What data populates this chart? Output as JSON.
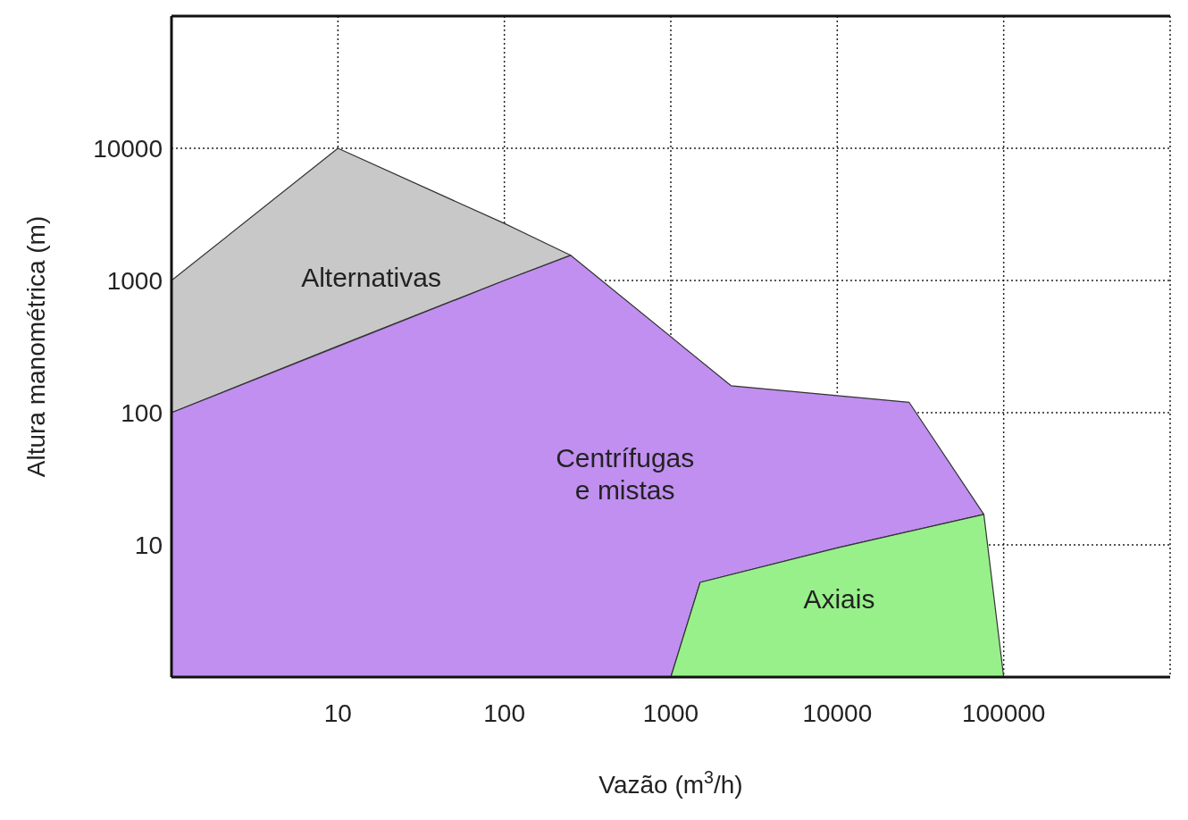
{
  "chart_data": {
    "type": "area",
    "xlabel": "Vazão (m$^{3}$/h)",
    "ylabel": "Altura manométrica (m)",
    "log": "xy",
    "grid": true,
    "xlim": [
      1,
      1000000
    ],
    "xticks": [
      10,
      100,
      1000,
      10000,
      100000,
      {
        "value": 1000000,
        "label": null
      }
    ],
    "ylim": [
      1,
      100000
    ],
    "yticks": [
      10,
      100,
      1000,
      10000
    ],
    "series": [
      {
        "name": "Alternativas",
        "color": "#c8c8c8",
        "x": [
          1,
          10,
          100,
          250,
          100,
          10,
          1
        ],
        "values": [
          1000,
          10000,
          2700,
          1550,
          1000,
          320,
          100
        ]
      },
      {
        "name": "Centrífugas e mistas",
        "color": "#c08ff0",
        "x": [
          1,
          100,
          250,
          2300,
          27000,
          76000,
          10000,
          1500,
          1000,
          1
        ],
        "values": [
          100,
          1000,
          1550,
          160,
          120,
          17,
          9.5,
          5.2,
          1,
          1
        ]
      },
      {
        "name": "Axiais",
        "color": "#98f08a",
        "x": [
          1000,
          1500,
          10000,
          76000,
          100000
        ],
        "values": [
          1,
          5.2,
          9.5,
          17,
          1
        ]
      }
    ]
  }
}
